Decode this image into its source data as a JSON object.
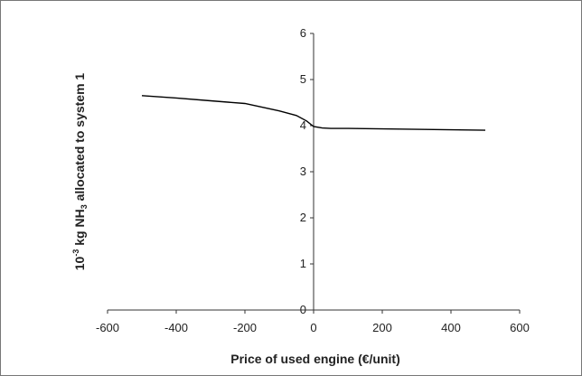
{
  "chart_data": {
    "type": "line",
    "title": "",
    "xlabel": "Price of used engine (€/unit)",
    "ylabel_parts": {
      "base": "10",
      "exponent": "-3",
      "mid": " kg NH",
      "subscript": "3",
      "end": " allocated to system 1"
    },
    "xlim": [
      -600,
      600
    ],
    "ylim": [
      0,
      6
    ],
    "x_ticks": [
      -600,
      -400,
      -200,
      0,
      200,
      400,
      600
    ],
    "y_ticks": [
      0,
      1,
      2,
      3,
      4,
      5,
      6
    ],
    "grid": false,
    "legend": "none",
    "series": [
      {
        "color": "#000000",
        "x": [
          -500,
          -400,
          -300,
          -200,
          -150,
          -100,
          -50,
          -20,
          0,
          25,
          50,
          100,
          200,
          300,
          400,
          500
        ],
        "y": [
          4.65,
          4.6,
          4.54,
          4.48,
          4.4,
          4.32,
          4.22,
          4.1,
          3.98,
          3.95,
          3.94,
          3.94,
          3.93,
          3.92,
          3.91,
          3.9
        ]
      }
    ]
  }
}
